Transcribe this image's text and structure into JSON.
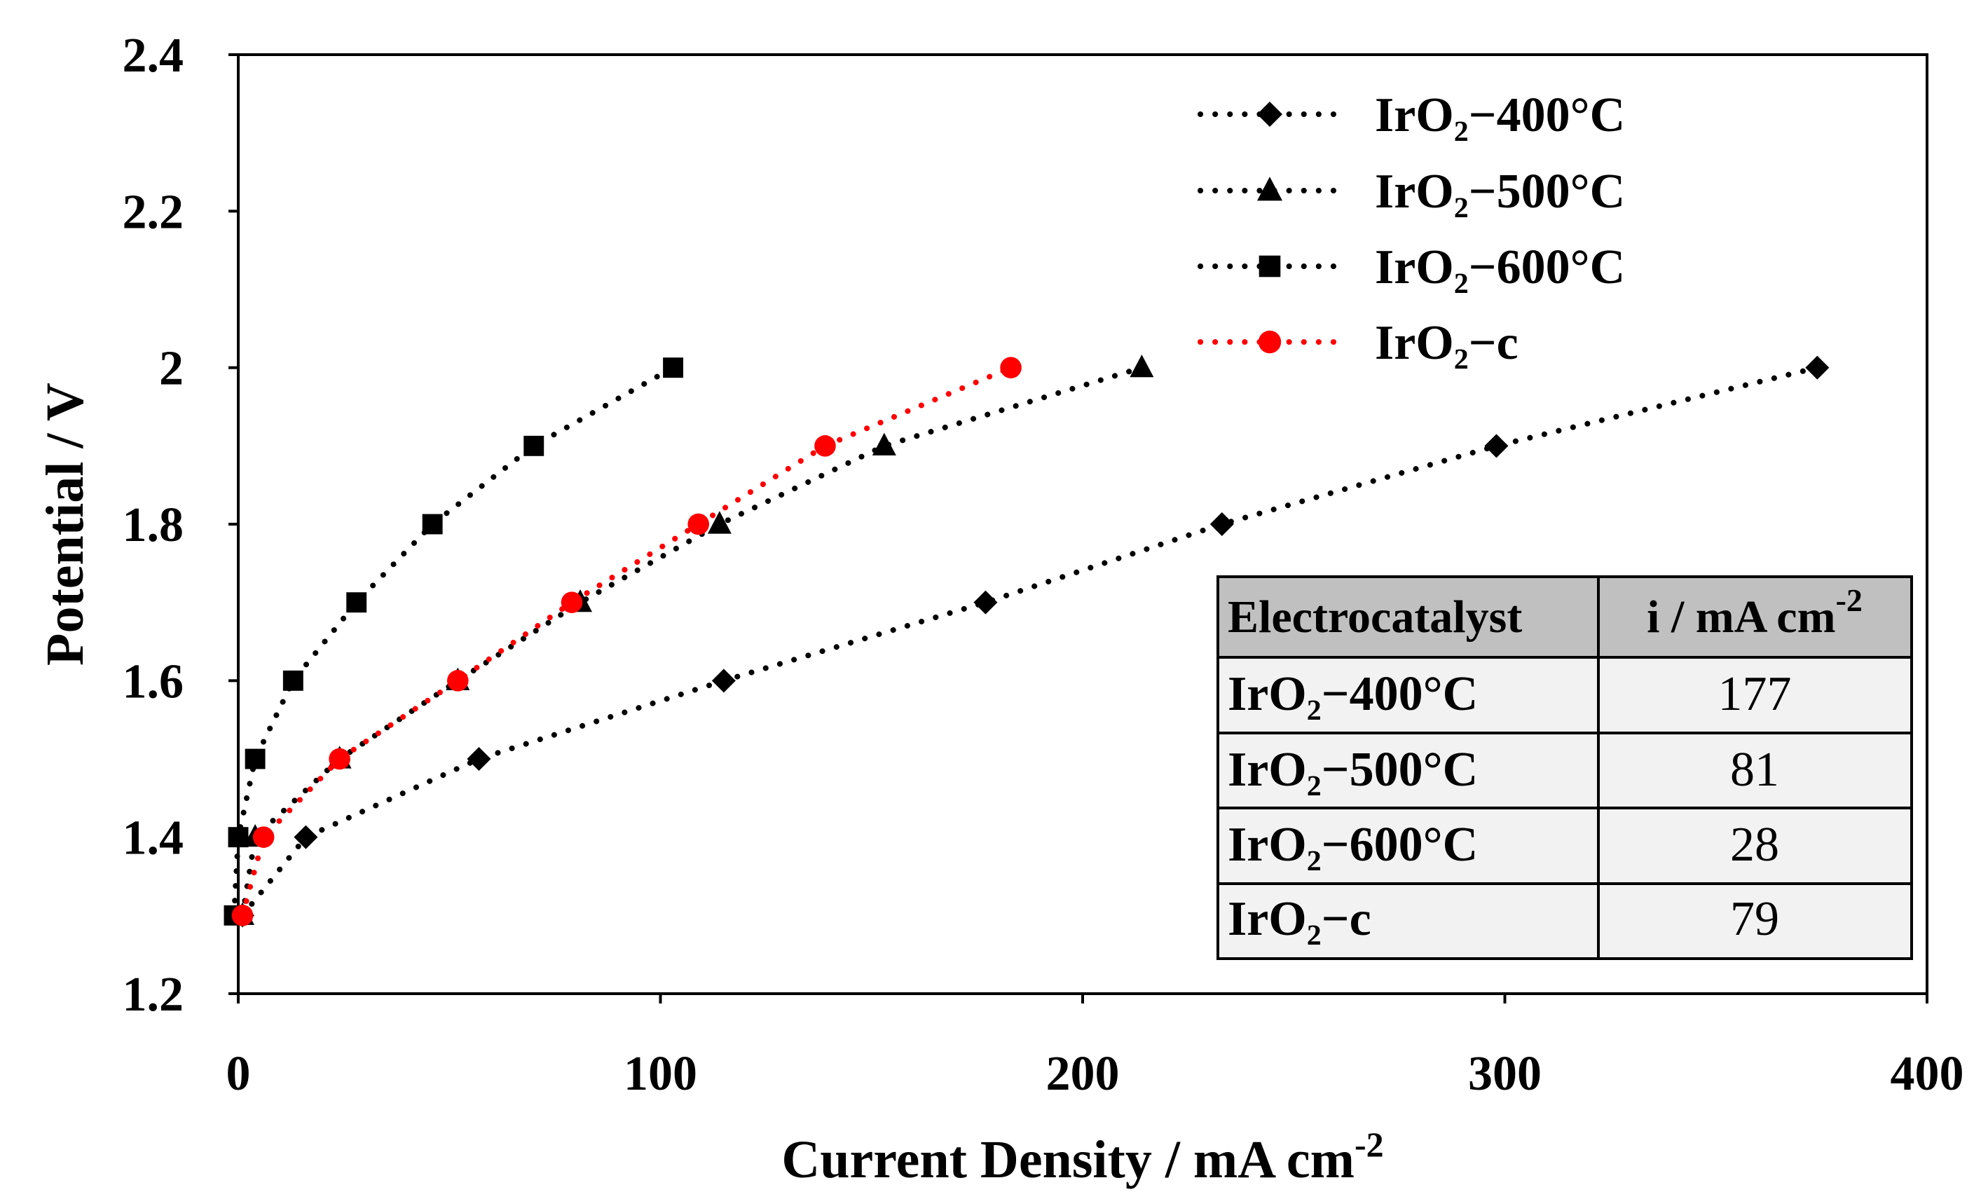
{
  "chart_data": {
    "type": "scatter",
    "title": "",
    "xlabel": "Current Density / mA cm",
    "xlabel_sup": "-2",
    "ylabel": "Potential / V",
    "xlim": [
      0,
      400
    ],
    "ylim": [
      1.2,
      2.4
    ],
    "x_ticks": [
      0,
      100,
      200,
      300,
      400
    ],
    "x_tick_labels": [
      "0",
      "100",
      "200",
      "300",
      "400"
    ],
    "y_ticks": [
      1.2,
      1.4,
      1.6,
      1.8,
      2.0,
      2.2,
      2.4
    ],
    "y_tick_labels": [
      "1.2",
      "1.4",
      "1.6",
      "1.8",
      "2",
      "2.2",
      "2.4"
    ],
    "grid": false,
    "legend_position": "top-right",
    "series": [
      {
        "name": "IrO₂−400°C",
        "marker": "diamond",
        "color": "#000000",
        "x": [
          1,
          16,
          57,
          115,
          177,
          233,
          298,
          374
        ],
        "y": [
          1.3,
          1.4,
          1.5,
          1.6,
          1.7,
          1.8,
          1.9,
          2.0
        ]
      },
      {
        "name": "IrO₂−500°C",
        "marker": "triangle",
        "color": "#000000",
        "x": [
          1,
          4,
          24,
          52,
          81,
          114,
          153,
          214
        ],
        "y": [
          1.3,
          1.4,
          1.5,
          1.6,
          1.7,
          1.8,
          1.9,
          2.0
        ]
      },
      {
        "name": "IrO₂−600°C",
        "marker": "square",
        "color": "#000000",
        "x": [
          -1,
          0,
          4,
          13,
          28,
          46,
          70,
          103
        ],
        "y": [
          1.3,
          1.4,
          1.5,
          1.6,
          1.7,
          1.8,
          1.9,
          2.0
        ]
      },
      {
        "name": "IrO₂−c",
        "marker": "circle",
        "color": "#ff0000",
        "x": [
          1,
          6,
          24,
          52,
          79,
          109,
          139,
          183
        ],
        "y": [
          1.3,
          1.4,
          1.5,
          1.6,
          1.7,
          1.8,
          1.9,
          2.0
        ]
      }
    ],
    "inset_table": {
      "headers": [
        "Electrocatalyst",
        "i / mA cm"
      ],
      "header_sup": "-2",
      "rows": [
        {
          "name": "IrO₂−400°C",
          "value": "177"
        },
        {
          "name": "IrO₂−500°C",
          "value": "81"
        },
        {
          "name": "IrO₂−600°C",
          "value": "28"
        },
        {
          "name": "IrO₂−c",
          "value": "79"
        }
      ],
      "header_bg": "#c0c0c0",
      "row_bg": "#f2f2f2"
    }
  }
}
